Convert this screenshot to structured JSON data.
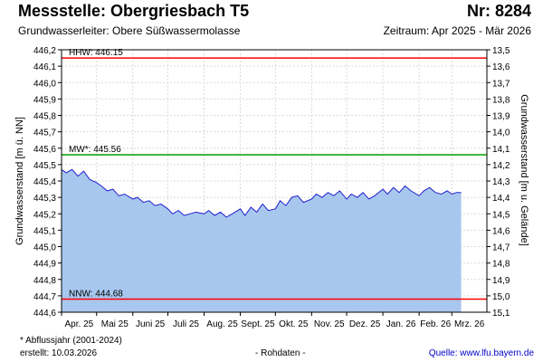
{
  "header": {
    "title": "Messstelle: Obergriesbach T5",
    "number": "Nr: 8284",
    "aquifer": "Grundwasserleiter:   Obere Süßwassermolasse",
    "period": "Zeitraum: Apr 2025 - Mär 2026"
  },
  "footer": {
    "footnote": "* Abflussjahr (2001-2024)",
    "created": "erstellt:  10.03.2026",
    "raw_data": "- Rohdaten -",
    "source": "Quelle: www.lfu.bayern.de"
  },
  "colors": {
    "area_fill": "#a7c7ee",
    "series_line": "#1f1fcf",
    "hhw_line": "#ff0000",
    "mw_line": "#00a000",
    "nnw_line": "#ff0000",
    "grid": "#d9d9d9"
  },
  "chart_data": {
    "type": "area",
    "ylabel": "Grundwasserstand [m ü. NN]",
    "y2label": "Grundwasserstand [m u. Gelände]",
    "ylim": [
      446.2,
      444.6
    ],
    "ylim_left_low": 444.6,
    "ylim_left_high": 446.2,
    "yticks": [
      "446,2",
      "446,1",
      "446,0",
      "445,9",
      "445,8",
      "445,7",
      "445,6",
      "445,5",
      "445,4",
      "445,3",
      "445,2",
      "445,1",
      "445,0",
      "444,9",
      "444,8",
      "444,7",
      "444,6"
    ],
    "y2ticks": [
      "13,5",
      "13,6",
      "13,7",
      "13,8",
      "13,9",
      "14,0",
      "14,1",
      "14,2",
      "14,3",
      "14,4",
      "14,5",
      "14,6",
      "14,7",
      "14,8",
      "14,9",
      "15,0",
      "15,1"
    ],
    "xticks": [
      "Apr. 25",
      "Mai 25",
      "Juni 25",
      "Juli 25",
      "Aug. 25",
      "Sept. 25",
      "Okt. 25",
      "Nov. 25",
      "Dez. 25",
      "Jan. 26",
      "Feb. 26",
      "Mrz. 26"
    ],
    "xlim": [
      "2025-04-01",
      "2026-03-31"
    ],
    "grid": true,
    "reference_lines": [
      {
        "label": "HHW: 446.15",
        "value": 446.15
      },
      {
        "label": "MW*: 445.56",
        "value": 445.56
      },
      {
        "label": "NNW: 444.68",
        "value": 444.68
      }
    ],
    "series": [
      {
        "x": [
          "2025-04-01",
          "2025-04-05",
          "2025-04-10",
          "2025-04-15",
          "2025-04-20",
          "2025-04-25",
          "2025-05-01",
          "2025-05-05",
          "2025-05-10",
          "2025-05-15",
          "2025-05-20",
          "2025-05-25",
          "2025-06-01",
          "2025-06-05",
          "2025-06-10",
          "2025-06-15",
          "2025-06-20",
          "2025-06-25",
          "2025-07-01",
          "2025-07-05",
          "2025-07-10",
          "2025-07-15",
          "2025-07-20",
          "2025-07-25",
          "2025-08-01",
          "2025-08-05",
          "2025-08-10",
          "2025-08-15",
          "2025-08-20",
          "2025-08-25",
          "2025-09-01",
          "2025-09-05",
          "2025-09-10",
          "2025-09-15",
          "2025-09-20",
          "2025-09-25",
          "2025-10-01",
          "2025-10-05",
          "2025-10-10",
          "2025-10-15",
          "2025-10-20",
          "2025-10-25",
          "2025-11-01",
          "2025-11-05",
          "2025-11-10",
          "2025-11-15",
          "2025-11-20",
          "2025-11-25",
          "2025-12-01",
          "2025-12-05",
          "2025-12-10",
          "2025-12-15",
          "2025-12-20",
          "2025-12-25",
          "2026-01-01",
          "2026-01-05",
          "2026-01-10",
          "2026-01-15",
          "2026-01-20",
          "2026-01-25",
          "2026-02-01",
          "2026-02-05",
          "2026-02-10",
          "2026-02-15",
          "2026-02-20",
          "2026-02-25",
          "2026-03-01",
          "2026-03-05",
          "2026-03-09"
        ],
        "y": [
          445.47,
          445.45,
          445.47,
          445.43,
          445.46,
          445.41,
          445.39,
          445.37,
          445.34,
          445.35,
          445.31,
          445.32,
          445.29,
          445.3,
          445.27,
          445.28,
          445.25,
          445.26,
          445.23,
          445.2,
          445.22,
          445.19,
          445.2,
          445.21,
          445.2,
          445.22,
          445.19,
          445.21,
          445.18,
          445.2,
          445.23,
          445.19,
          445.24,
          445.21,
          445.26,
          445.22,
          445.23,
          445.28,
          445.25,
          445.3,
          445.31,
          445.27,
          445.29,
          445.32,
          445.3,
          445.33,
          445.31,
          445.34,
          445.29,
          445.32,
          445.3,
          445.33,
          445.29,
          445.31,
          445.35,
          445.32,
          445.36,
          445.33,
          445.37,
          445.34,
          445.31,
          445.34,
          445.36,
          445.33,
          445.32,
          445.34,
          445.32,
          445.33,
          445.33
        ]
      }
    ]
  }
}
